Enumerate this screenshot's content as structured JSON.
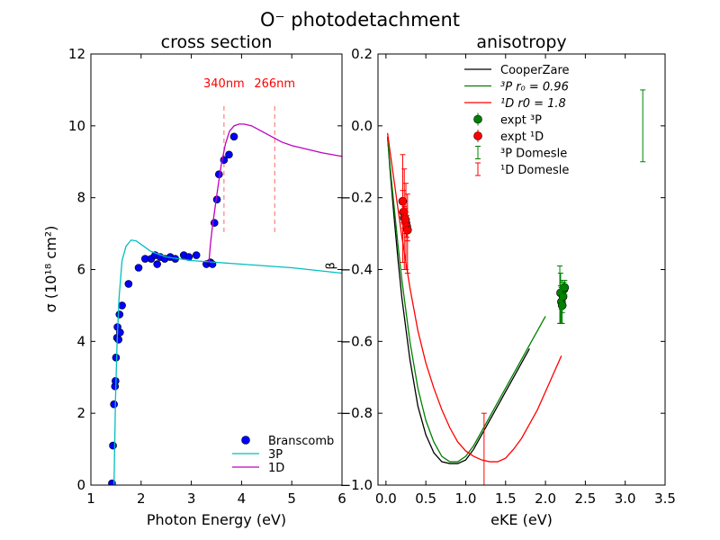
{
  "figure": {
    "suptitle": "O⁻ photodetachment"
  },
  "chart_data": [
    {
      "type": "scatter",
      "title": "cross section",
      "xlabel": "Photon Energy (eV)",
      "ylabel": "σ (10¹⁸ cm²)",
      "xlim": [
        1,
        6
      ],
      "ylim": [
        0,
        12
      ],
      "xticks": [
        1,
        2,
        3,
        4,
        5,
        6
      ],
      "yticks": [
        0,
        2,
        4,
        6,
        8,
        10,
        12
      ],
      "legend_position": "lower-right",
      "annotations": [
        {
          "text": "340nm",
          "x": 3.65,
          "y_text": 11.0,
          "color": "#ff0000",
          "line_ymin": 7.0,
          "line_ymax": 10.55
        },
        {
          "text": "266nm",
          "x": 4.66,
          "y_text": 11.0,
          "color": "#ff0000",
          "line_ymin": 7.0,
          "line_ymax": 10.55
        }
      ],
      "stray_text": {
        "text": "β",
        "x": 5.85,
        "y": 6.0
      },
      "series": [
        {
          "name": "Branscomb",
          "kind": "markers",
          "color": "#0000ff",
          "x": [
            1.42,
            1.44,
            1.46,
            1.48,
            1.49,
            1.5,
            1.52,
            1.53,
            1.55,
            1.57,
            1.58,
            1.62,
            1.75,
            1.95,
            2.08,
            2.2,
            2.28,
            2.32,
            2.38,
            2.47,
            2.58,
            2.68,
            2.85,
            2.95,
            3.1,
            3.3,
            3.38,
            3.42,
            3.46,
            3.51,
            3.55,
            3.65,
            3.75,
            3.85
          ],
          "y": [
            0.05,
            1.1,
            2.25,
            2.75,
            2.9,
            3.55,
            4.1,
            4.4,
            4.05,
            4.75,
            4.25,
            5.0,
            5.6,
            6.05,
            6.3,
            6.3,
            6.4,
            6.15,
            6.35,
            6.3,
            6.35,
            6.3,
            6.4,
            6.35,
            6.4,
            6.15,
            6.2,
            6.15,
            7.3,
            7.95,
            8.65,
            9.05,
            9.2,
            9.7
          ]
        },
        {
          "name": "3P",
          "kind": "line",
          "color": "#00bfbf",
          "x": [
            1.46,
            1.49,
            1.52,
            1.56,
            1.62,
            1.7,
            1.8,
            1.9,
            2.0,
            2.2,
            2.5,
            3.0,
            3.5,
            4.0,
            5.0,
            6.0
          ],
          "y": [
            0.0,
            2.4,
            3.9,
            5.2,
            6.25,
            6.65,
            6.82,
            6.8,
            6.7,
            6.5,
            6.35,
            6.25,
            6.2,
            6.15,
            6.05,
            5.9
          ]
        },
        {
          "name": "1D",
          "kind": "line",
          "color": "#bf00bf",
          "x": [
            3.35,
            3.38,
            3.42,
            3.47,
            3.53,
            3.6,
            3.68,
            3.76,
            3.85,
            3.95,
            4.05,
            4.2,
            4.4,
            4.6,
            4.8,
            5.0,
            5.3,
            5.6,
            6.0
          ],
          "y": [
            6.2,
            6.7,
            7.2,
            7.7,
            8.3,
            8.95,
            9.5,
            9.85,
            10.0,
            10.05,
            10.05,
            10.0,
            9.85,
            9.7,
            9.55,
            9.45,
            9.35,
            9.25,
            9.15
          ]
        }
      ]
    },
    {
      "type": "line",
      "title": "anisotropy",
      "xlabel": "eKE (eV)",
      "ylabel": "",
      "xlim": [
        -0.1,
        3.5
      ],
      "ylim": [
        -1.0,
        0.2
      ],
      "xticks": [
        0.0,
        0.5,
        1.0,
        1.5,
        2.0,
        2.5,
        3.0,
        3.5
      ],
      "yticks": [
        -1.0,
        -0.8,
        -0.6,
        -0.4,
        -0.2,
        0.0,
        0.2
      ],
      "xtick_labels": [
        "0.0",
        "0.5",
        "1.0",
        "1.5",
        "2.0",
        "2.5",
        "3.0",
        "3.5"
      ],
      "ytick_labels": [
        "−1.0",
        "−0.8",
        "−0.6",
        "−0.4",
        "−0.2",
        "0.0",
        "0.2"
      ],
      "legend_position": "top-center",
      "series": [
        {
          "name": "CooperZare",
          "kind": "line",
          "color": "#000000",
          "x": [
            0.02,
            0.05,
            0.1,
            0.15,
            0.2,
            0.3,
            0.4,
            0.5,
            0.6,
            0.7,
            0.8,
            0.9,
            1.0,
            1.1,
            1.2,
            1.35,
            1.5,
            1.65,
            1.8
          ],
          "y": [
            -0.03,
            -0.12,
            -0.25,
            -0.37,
            -0.48,
            -0.65,
            -0.78,
            -0.86,
            -0.91,
            -0.935,
            -0.94,
            -0.94,
            -0.93,
            -0.9,
            -0.86,
            -0.8,
            -0.74,
            -0.68,
            -0.62
          ]
        },
        {
          "name": "³P r₀ = 0.96",
          "label_main": "³P",
          "label_sub": "r₀ = 0.96",
          "kind": "line",
          "color": "#008000",
          "x": [
            0.02,
            0.05,
            0.1,
            0.15,
            0.2,
            0.3,
            0.4,
            0.5,
            0.6,
            0.7,
            0.8,
            0.9,
            1.0,
            1.1,
            1.2,
            1.35,
            1.5,
            1.65,
            1.8,
            2.0
          ],
          "y": [
            -0.03,
            -0.11,
            -0.22,
            -0.33,
            -0.43,
            -0.6,
            -0.73,
            -0.82,
            -0.88,
            -0.92,
            -0.935,
            -0.935,
            -0.92,
            -0.89,
            -0.85,
            -0.79,
            -0.73,
            -0.67,
            -0.61,
            -0.53
          ]
        },
        {
          "name": "¹D r0 = 1.8",
          "label_main": "¹D",
          "label_sub": "r0 = 1.8",
          "kind": "line",
          "color": "#ff0000",
          "x": [
            0.02,
            0.05,
            0.1,
            0.15,
            0.2,
            0.3,
            0.4,
            0.5,
            0.6,
            0.7,
            0.8,
            0.9,
            1.0,
            1.1,
            1.2,
            1.3,
            1.4,
            1.5,
            1.6,
            1.7,
            1.8,
            1.9,
            2.0,
            2.1,
            2.2
          ],
          "y": [
            -0.02,
            -0.07,
            -0.15,
            -0.23,
            -0.31,
            -0.45,
            -0.57,
            -0.66,
            -0.73,
            -0.79,
            -0.84,
            -0.88,
            -0.905,
            -0.92,
            -0.93,
            -0.935,
            -0.935,
            -0.925,
            -0.9,
            -0.87,
            -0.83,
            -0.79,
            -0.74,
            -0.69,
            -0.64
          ]
        },
        {
          "name": "expt ³P",
          "kind": "errorbar-markers",
          "color": "#008000",
          "x": [
            2.19,
            2.2,
            2.21,
            2.22,
            2.23,
            2.24
          ],
          "y": [
            -0.465,
            -0.49,
            -0.5,
            -0.475,
            -0.455,
            -0.45
          ],
          "err": [
            0.02,
            0.02,
            0.02,
            0.02,
            0.02,
            0.02
          ]
        },
        {
          "name": "expt ¹D",
          "kind": "errorbar-markers",
          "color": "#ff0000",
          "x": [
            0.21,
            0.22,
            0.23,
            0.24,
            0.25,
            0.26,
            0.27
          ],
          "y": [
            -0.21,
            -0.24,
            -0.255,
            -0.26,
            -0.27,
            -0.28,
            -0.29
          ],
          "err": [
            0.03,
            0.03,
            0.03,
            0.03,
            0.03,
            0.03,
            0.03
          ]
        },
        {
          "name": "³P Domesle",
          "kind": "errorbars",
          "color": "#008000",
          "x": [
            2.18,
            2.19,
            2.2,
            2.21,
            3.22
          ],
          "y": [
            -0.47,
            -0.48,
            -0.5,
            -0.49,
            0.0
          ],
          "err": [
            0.08,
            0.07,
            0.05,
            0.06,
            0.1
          ]
        },
        {
          "name": "¹D Domesle",
          "kind": "errorbars",
          "color": "#ff0000",
          "x": [
            0.21,
            0.23,
            0.25,
            0.27,
            1.23
          ],
          "y": [
            -0.23,
            -0.26,
            -0.28,
            -0.3,
            -0.9
          ],
          "err": [
            0.15,
            0.14,
            0.12,
            0.11,
            0.1
          ]
        }
      ]
    }
  ]
}
